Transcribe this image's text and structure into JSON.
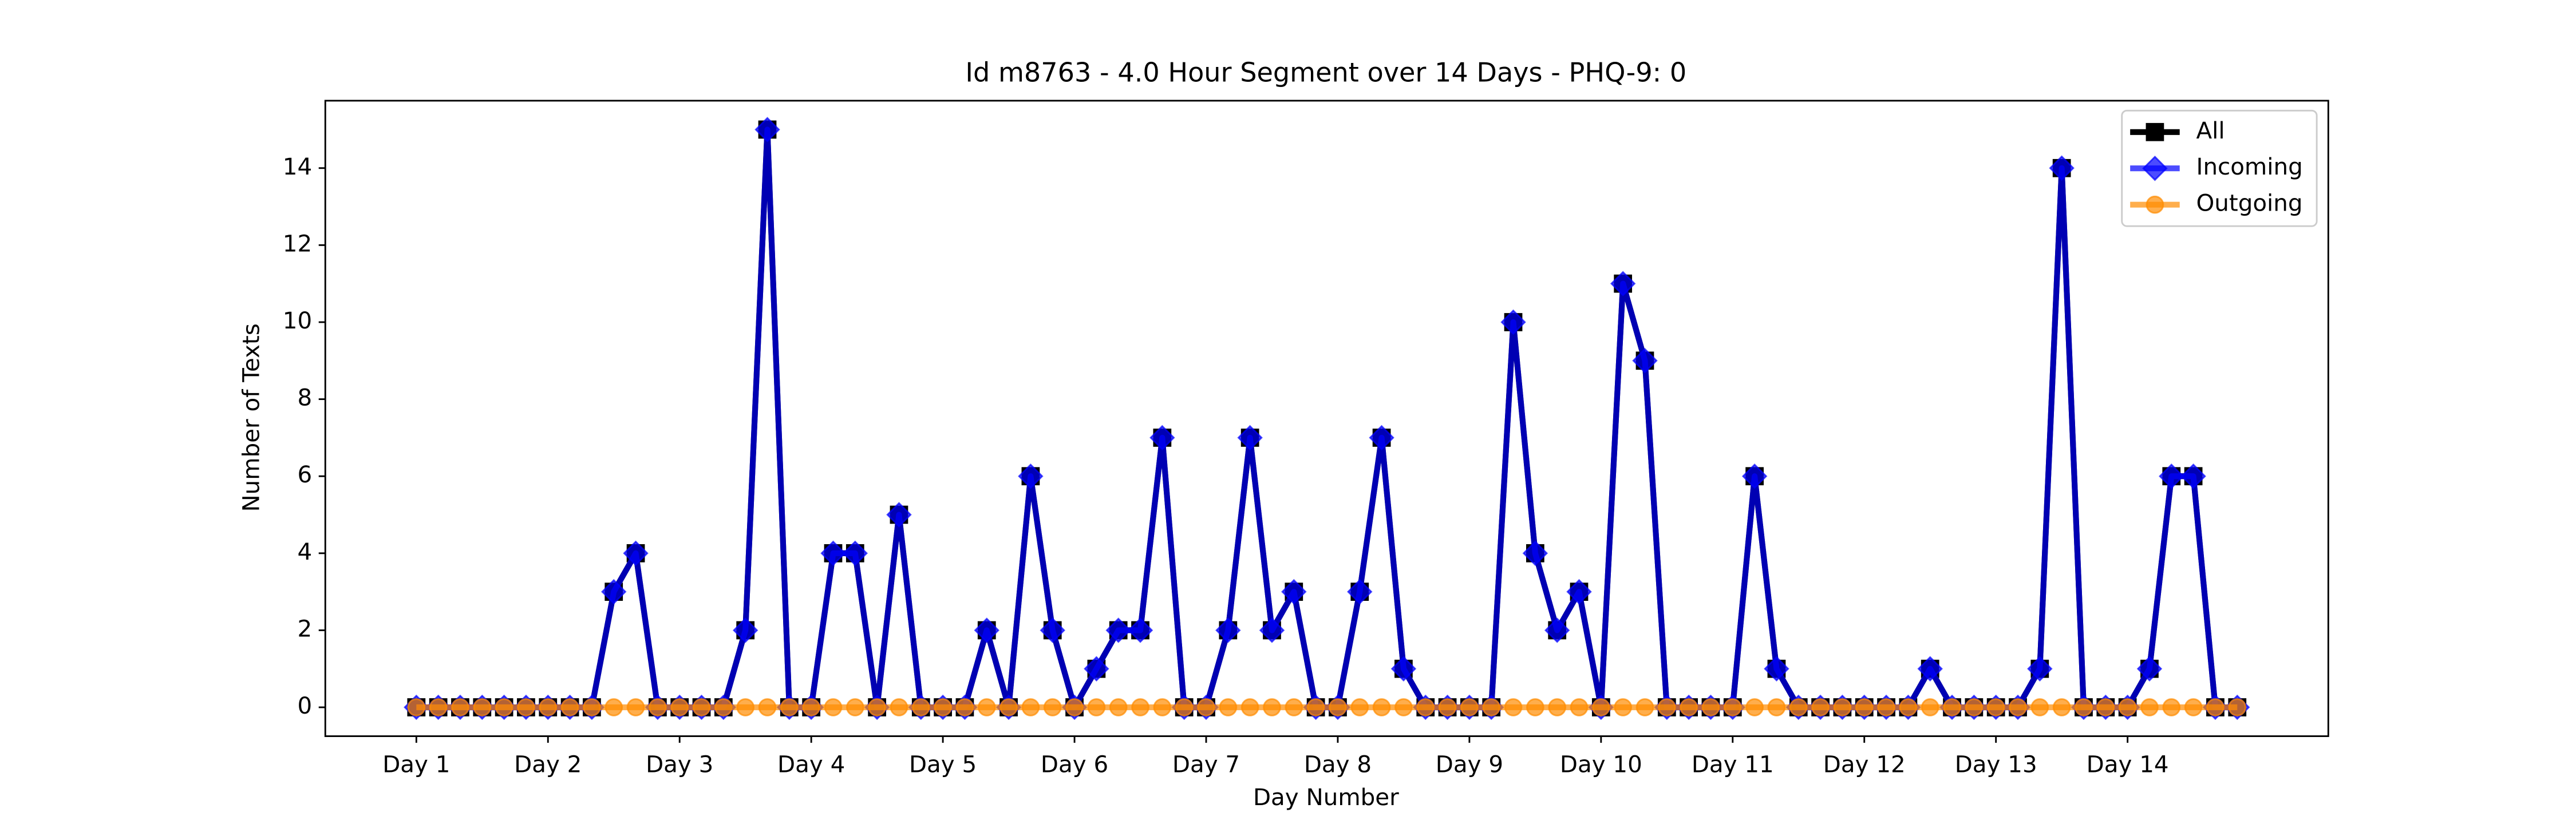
{
  "chart_data": {
    "type": "line",
    "title": "Id m8763 - 4.0 Hour Segment over 14 Days - PHQ-9: 0",
    "xlabel": "Day Number",
    "ylabel": "Number of Texts",
    "x": [
      0,
      1,
      2,
      3,
      4,
      5,
      6,
      7,
      8,
      9,
      10,
      11,
      12,
      13,
      14,
      15,
      16,
      17,
      18,
      19,
      20,
      21,
      22,
      23,
      24,
      25,
      26,
      27,
      28,
      29,
      30,
      31,
      32,
      33,
      34,
      35,
      36,
      37,
      38,
      39,
      40,
      41,
      42,
      43,
      44,
      45,
      46,
      47,
      48,
      49,
      50,
      51,
      52,
      53,
      54,
      55,
      56,
      57,
      58,
      59,
      60,
      61,
      62,
      63,
      64,
      65,
      66,
      67,
      68,
      69,
      70,
      71,
      72,
      73,
      74,
      75,
      76,
      77,
      78,
      79,
      80,
      81,
      82,
      83
    ],
    "series": [
      {
        "name": "All",
        "color": "#000000",
        "marker": "square",
        "values": [
          0,
          0,
          0,
          0,
          0,
          0,
          0,
          0,
          0,
          3,
          4,
          0,
          0,
          0,
          0,
          2,
          15,
          0,
          0,
          4,
          4,
          0,
          5,
          0,
          0,
          0,
          2,
          0,
          6,
          2,
          0,
          1,
          2,
          2,
          7,
          0,
          0,
          2,
          7,
          2,
          3,
          0,
          0,
          3,
          7,
          1,
          0,
          0,
          0,
          0,
          10,
          4,
          2,
          3,
          0,
          11,
          9,
          0,
          0,
          0,
          0,
          6,
          1,
          0,
          0,
          0,
          0,
          0,
          0,
          1,
          0,
          0,
          0,
          0,
          1,
          14,
          0,
          0,
          0,
          1,
          6,
          6,
          0,
          0
        ]
      },
      {
        "name": "Incoming",
        "color": "#0000ff",
        "marker": "diamond",
        "values": [
          0,
          0,
          0,
          0,
          0,
          0,
          0,
          0,
          0,
          3,
          4,
          0,
          0,
          0,
          0,
          2,
          15,
          0,
          0,
          4,
          4,
          0,
          5,
          0,
          0,
          0,
          2,
          0,
          6,
          2,
          0,
          1,
          2,
          2,
          7,
          0,
          0,
          2,
          7,
          2,
          3,
          0,
          0,
          3,
          7,
          1,
          0,
          0,
          0,
          0,
          10,
          4,
          2,
          3,
          0,
          11,
          9,
          0,
          0,
          0,
          0,
          6,
          1,
          0,
          0,
          0,
          0,
          0,
          0,
          1,
          0,
          0,
          0,
          0,
          1,
          14,
          0,
          0,
          0,
          1,
          6,
          6,
          0,
          0
        ]
      },
      {
        "name": "Outgoing",
        "color": "#ff8c00",
        "marker": "circle",
        "values": [
          0,
          0,
          0,
          0,
          0,
          0,
          0,
          0,
          0,
          0,
          0,
          0,
          0,
          0,
          0,
          0,
          0,
          0,
          0,
          0,
          0,
          0,
          0,
          0,
          0,
          0,
          0,
          0,
          0,
          0,
          0,
          0,
          0,
          0,
          0,
          0,
          0,
          0,
          0,
          0,
          0,
          0,
          0,
          0,
          0,
          0,
          0,
          0,
          0,
          0,
          0,
          0,
          0,
          0,
          0,
          0,
          0,
          0,
          0,
          0,
          0,
          0,
          0,
          0,
          0,
          0,
          0,
          0,
          0,
          0,
          0,
          0,
          0,
          0,
          0,
          0,
          0,
          0,
          0,
          0,
          0,
          0,
          0,
          0
        ]
      }
    ],
    "xlim": [
      -4.15,
      87.15
    ],
    "xticks": [
      {
        "value": 0,
        "label": "Day 1"
      },
      {
        "value": 6,
        "label": "Day 2"
      },
      {
        "value": 12,
        "label": "Day 3"
      },
      {
        "value": 18,
        "label": "Day 4"
      },
      {
        "value": 24,
        "label": "Day 5"
      },
      {
        "value": 30,
        "label": "Day 6"
      },
      {
        "value": 36,
        "label": "Day 7"
      },
      {
        "value": 42,
        "label": "Day 8"
      },
      {
        "value": 48,
        "label": "Day 9"
      },
      {
        "value": 54,
        "label": "Day 10"
      },
      {
        "value": 60,
        "label": "Day 11"
      },
      {
        "value": 66,
        "label": "Day 12"
      },
      {
        "value": 72,
        "label": "Day 13"
      },
      {
        "value": 78,
        "label": "Day 14"
      }
    ],
    "ylim": [
      -0.75,
      15.75
    ],
    "yticks": [
      0,
      2,
      4,
      6,
      8,
      10,
      12,
      14
    ],
    "grid": false,
    "legend": "upper right"
  }
}
